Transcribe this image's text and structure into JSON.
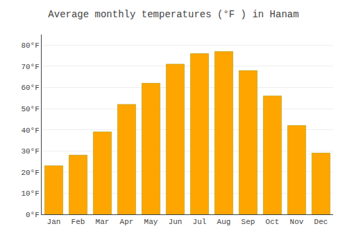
{
  "chart_data": {
    "type": "bar",
    "title": "Average monthly temperatures (°F ) in Hanam",
    "categories": [
      "Jan",
      "Feb",
      "Mar",
      "Apr",
      "May",
      "Jun",
      "Jul",
      "Aug",
      "Sep",
      "Oct",
      "Nov",
      "Dec"
    ],
    "values": [
      23,
      28,
      39,
      52,
      62,
      71,
      76,
      77,
      68,
      56,
      42,
      29
    ],
    "color": "#FFA500",
    "ylim": [
      0,
      85
    ],
    "yticks": [
      {
        "value": 0,
        "label": "0°F"
      },
      {
        "value": 10,
        "label": "10°F"
      },
      {
        "value": 20,
        "label": "20°F"
      },
      {
        "value": 30,
        "label": "30°F"
      },
      {
        "value": 40,
        "label": "40°F"
      },
      {
        "value": 50,
        "label": "50°F"
      },
      {
        "value": 60,
        "label": "60°F"
      },
      {
        "value": 70,
        "label": "70°F"
      },
      {
        "value": 80,
        "label": "80°F"
      }
    ],
    "grid": true
  }
}
